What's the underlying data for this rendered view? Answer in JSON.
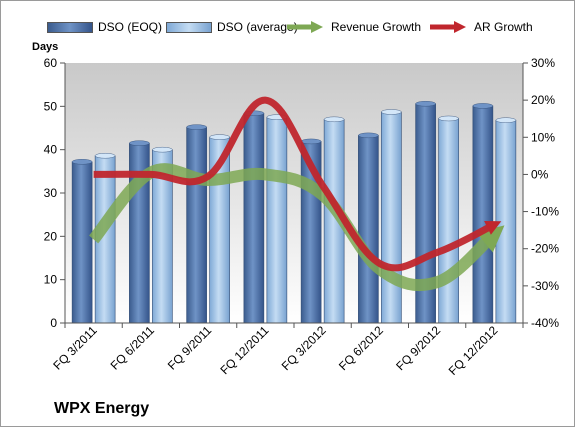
{
  "company_label": "WPX Energy",
  "chart_data": {
    "type": "bar",
    "categories": [
      "FQ 3/2011",
      "FQ 6/2011",
      "FQ 9/2011",
      "FQ 12/2011",
      "FQ 3/2012",
      "FQ 6/2012",
      "FQ 9/2012",
      "FQ 12/2012"
    ],
    "ylabel": "Days",
    "ylim": [
      0,
      60
    ],
    "yticks": [
      "0",
      "10",
      "20",
      "30",
      "40",
      "50",
      "60"
    ],
    "y2lim": [
      -40,
      30
    ],
    "y2ticks": [
      "-40%",
      "-30%",
      "-20%",
      "-10%",
      "0%",
      "10%",
      "20%",
      "30%"
    ],
    "grid": false,
    "legend_position": "top",
    "series": [
      {
        "name": "DSO (EOQ)",
        "kind": "bar",
        "color": "#4a6fa5",
        "values": [
          37.2,
          41.5,
          45.2,
          48.4,
          41.9,
          43.3,
          50.6,
          50.1
        ]
      },
      {
        "name": "DSO (average)",
        "kind": "bar",
        "color": "#9cc3e8",
        "values": [
          38.6,
          40.0,
          42.9,
          47.5,
          47.0,
          48.7,
          47.2,
          46.8
        ]
      },
      {
        "name": "Revenue Growth",
        "kind": "line",
        "axis": "right",
        "color": "#7ea854",
        "values": [
          -17.5,
          0.5,
          -1.5,
          0.0,
          -5.5,
          -25.5,
          -29.0,
          -16.0
        ]
      },
      {
        "name": "AR Growth",
        "kind": "line",
        "axis": "right",
        "color": "#c0262d",
        "values": [
          0.0,
          0.0,
          -0.5,
          20.0,
          -3.0,
          -24.0,
          -21.0,
          -13.5
        ]
      }
    ]
  }
}
